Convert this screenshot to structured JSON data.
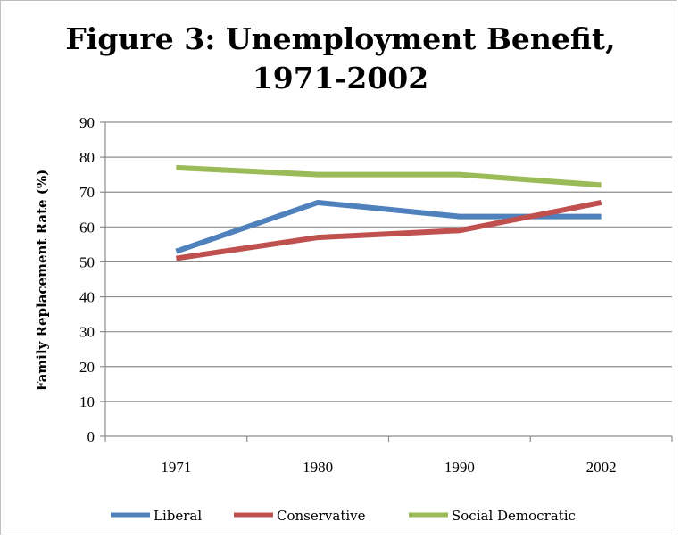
{
  "chart_data": {
    "type": "line",
    "title_line1": "Figure 3: Unemployment Benefit,",
    "title_line2": "1971-2002",
    "xlabel": "",
    "ylabel": "Family Replacement Rate (%)",
    "categories": [
      "1971",
      "1980",
      "1990",
      "2002"
    ],
    "ylim": [
      0,
      90
    ],
    "yticks": [
      0,
      10,
      20,
      30,
      40,
      50,
      60,
      70,
      80,
      90
    ],
    "grid": true,
    "legend_position": "bottom",
    "series": [
      {
        "name": "Liberal",
        "color": "#4f81bd",
        "values": [
          53,
          67,
          63,
          63
        ]
      },
      {
        "name": "Conservative",
        "color": "#c0504d",
        "values": [
          51,
          57,
          59,
          67
        ]
      },
      {
        "name": "Social Democratic",
        "color": "#9bbb59",
        "values": [
          77,
          75,
          75,
          72
        ]
      }
    ]
  }
}
